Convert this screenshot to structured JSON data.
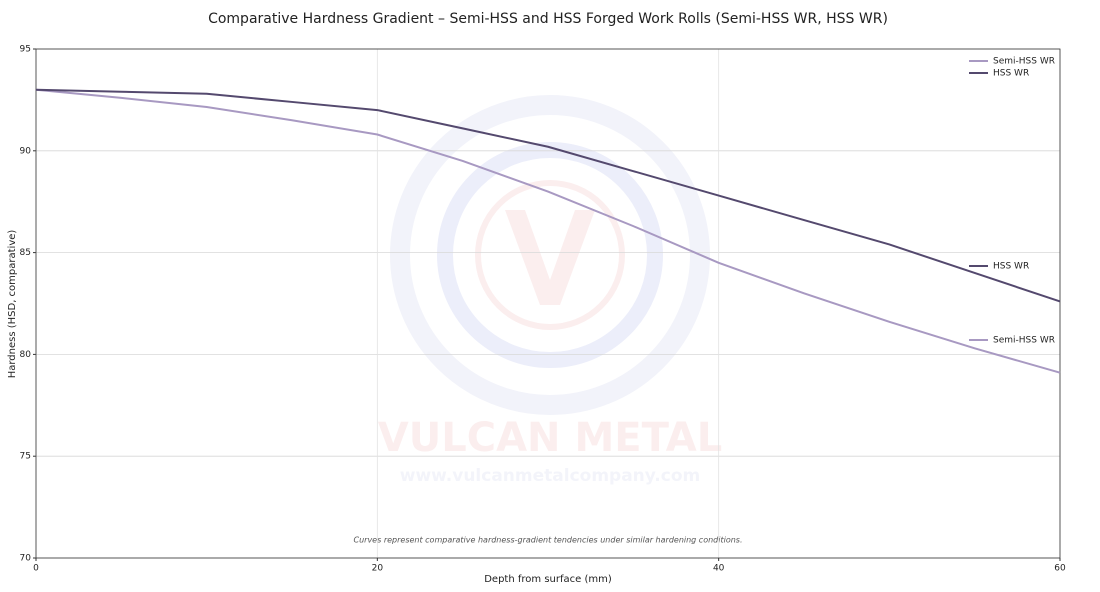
{
  "chart_data": {
    "type": "line",
    "title": "Comparative Hardness Gradient – Semi-HSS and HSS Forged Work Rolls (Semi-HSS WR, HSS WR)",
    "x_label": "Depth from surface (mm)",
    "y_label": "Hardness (HSD, comparative)",
    "annotation": "Curves represent comparative hardness-gradient tendencies under similar hardening conditions.",
    "watermark": {
      "brand": "VULCAN METAL",
      "url": "www.vulcanmetalcompany.com"
    },
    "x": [
      0,
      5,
      10,
      15,
      20,
      25,
      30,
      35,
      40,
      45,
      50,
      55,
      60
    ],
    "series": [
      {
        "name": "Semi-HSS WR",
        "color": "#a899c2",
        "values": [
          93,
          92.6,
          92.15,
          91.5,
          90.8,
          89.5,
          88.0,
          86.3,
          84.5,
          83.0,
          81.6,
          80.3,
          79.1
        ]
      },
      {
        "name": "HSS WR",
        "color": "#54496e",
        "values": [
          93,
          92.9,
          92.8,
          92.4,
          92.0,
          91.1,
          90.2,
          89.0,
          87.8,
          86.6,
          85.4,
          84.0,
          82.6
        ]
      }
    ],
    "xlim": [
      0,
      60
    ],
    "xticks": [
      0,
      20,
      40,
      60
    ],
    "ylim": [
      70,
      95
    ],
    "yticks": [
      70,
      75,
      80,
      85,
      90,
      95
    ],
    "grid": true,
    "legend": "upper right"
  }
}
